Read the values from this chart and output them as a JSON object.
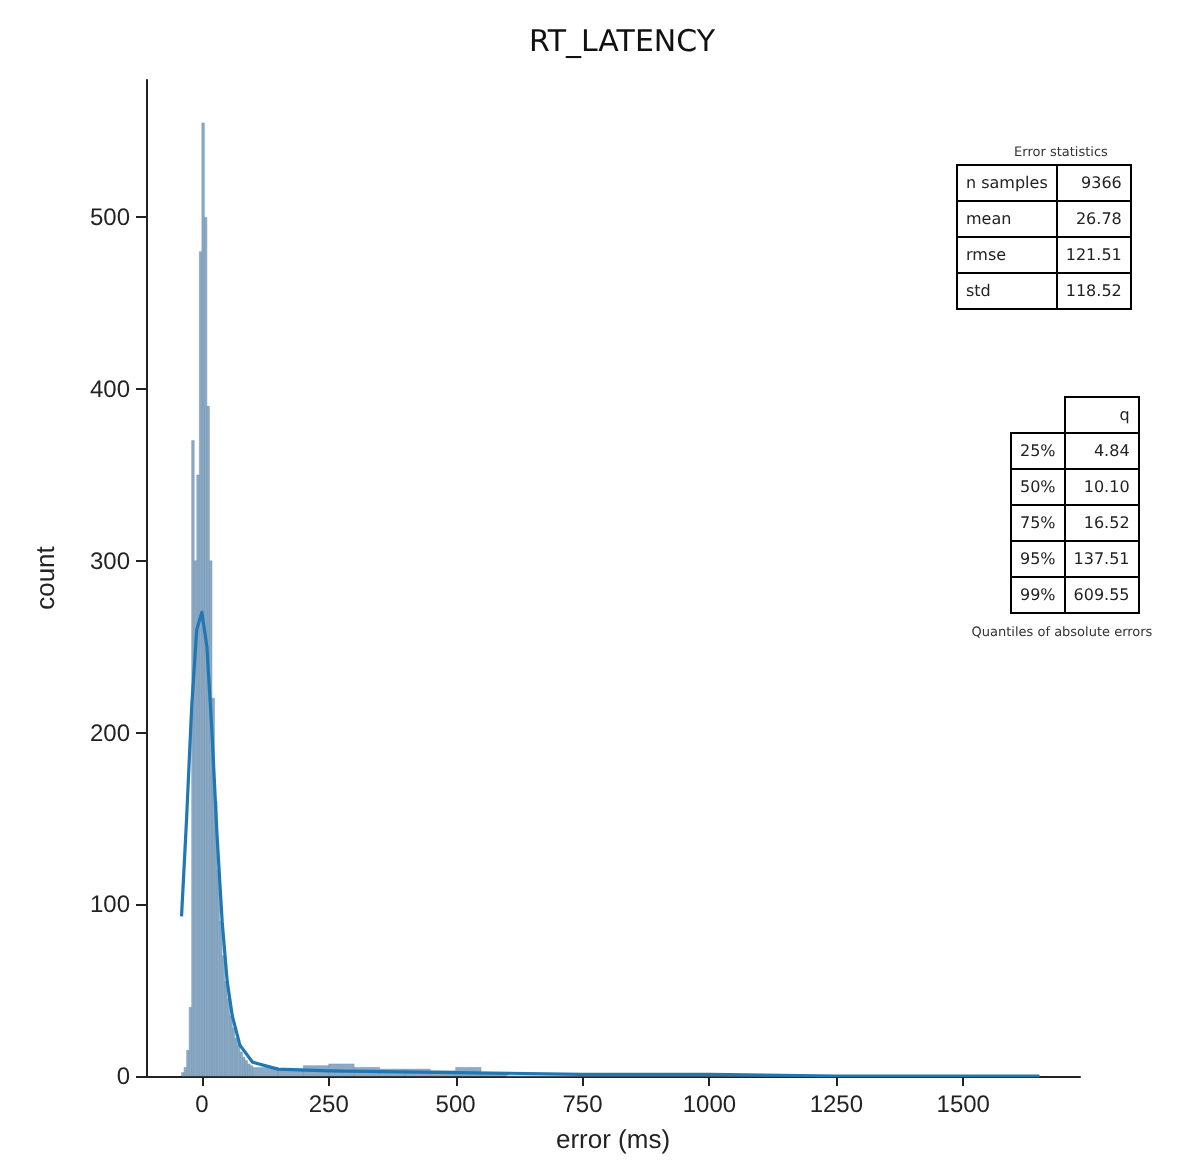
{
  "chart_data": {
    "type": "histogram",
    "title": "RT_LATENCY",
    "xlabel": "error (ms)",
    "ylabel": "count",
    "bins": [
      -40,
      -35,
      -30,
      -25,
      -20,
      -15,
      -10,
      -5,
      0,
      5,
      10,
      15,
      20,
      25,
      30,
      35,
      40,
      45,
      50,
      55,
      60,
      65,
      70,
      75,
      80,
      85,
      90,
      95,
      100,
      150,
      200,
      250,
      300,
      350,
      400,
      450,
      500,
      550,
      600,
      650,
      700,
      750,
      800,
      850,
      900,
      950,
      1000,
      1050,
      1100,
      1150,
      1200,
      1250,
      1300,
      1350,
      1400,
      1450,
      1500,
      1550,
      1600,
      1650
    ],
    "values": [
      2,
      5,
      15,
      40,
      370,
      300,
      350,
      480,
      555,
      500,
      390,
      300,
      220,
      160,
      120,
      90,
      70,
      55,
      45,
      35,
      28,
      22,
      18,
      14,
      11,
      9,
      7,
      6,
      5,
      4,
      6,
      7,
      5,
      4,
      4,
      3,
      5,
      2,
      0,
      0,
      0,
      0,
      0,
      0,
      0,
      0,
      0,
      0,
      0,
      0,
      0,
      0,
      0,
      0,
      0,
      0,
      0,
      0,
      0
    ],
    "color": "#7195b5",
    "series": [
      {
        "type": "line",
        "color": "#1f77b4",
        "x": [
          -40,
          -30,
          -20,
          -10,
          0,
          10,
          20,
          30,
          40,
          50,
          60,
          75,
          100,
          150,
          250,
          500,
          750,
          1000,
          1250,
          1500,
          1650
        ],
        "values": [
          93,
          150,
          215,
          260,
          270,
          250,
          200,
          140,
          90,
          55,
          35,
          18,
          8,
          4,
          3,
          2,
          1,
          1,
          0,
          0,
          0
        ]
      }
    ],
    "xlim": [
      -110,
      1730
    ],
    "xticks": [
      0,
      250,
      500,
      750,
      1000,
      1250,
      1500
    ],
    "ylim": [
      0,
      580
    ],
    "yticks": [
      0,
      100,
      200,
      300,
      400,
      500
    ],
    "grid": false,
    "annotations": [
      "Error statistics",
      "n samples",
      "9366",
      "mean",
      "26.78",
      "rmse",
      "121.51",
      "std",
      "118.52",
      "q",
      "25%",
      "4.84",
      "50%",
      "10.10",
      "75%",
      "16.52",
      "95%",
      "137.51",
      "99%",
      "609.55",
      "Quantiles of absolute errors"
    ]
  }
}
